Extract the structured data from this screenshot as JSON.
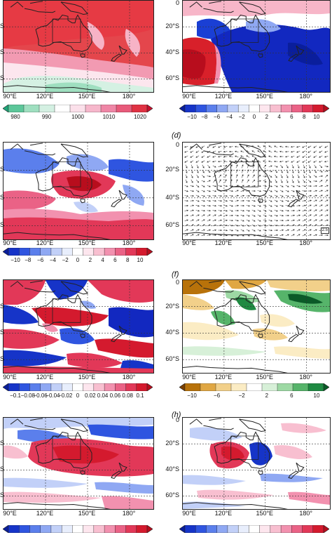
{
  "lon_labels": [
    "90°E",
    "120°E",
    "150°E",
    "180°"
  ],
  "lat_labels": [
    "0",
    "20°S",
    "40°S",
    "60°S"
  ],
  "lat_labels_cut_left": [
    "S",
    "S",
    "S"
  ],
  "panels": {
    "a": {
      "letter": "",
      "field": "sea-level-pressure",
      "colorbar": "slp"
    },
    "b": {
      "letter": "",
      "field": "slp-anomaly",
      "colorbar": "div10"
    },
    "c": {
      "letter": "",
      "field": "anomaly",
      "colorbar": "div10"
    },
    "d": {
      "letter": "(d)",
      "field": "wind-vectors",
      "ref_vector": "2.5"
    },
    "e": {
      "letter": "",
      "field": "small-anomaly",
      "colorbar": "div01"
    },
    "f": {
      "letter": "(f)",
      "field": "precipitation-anomaly",
      "colorbar": "precip"
    },
    "g": {
      "letter": "",
      "field": "anomaly"
    },
    "h": {
      "letter": "(h)",
      "field": "anomaly"
    }
  },
  "colorbars": {
    "slp": {
      "labels": [
        "980",
        "990",
        "1000",
        "1010",
        "1020"
      ],
      "colors": [
        "#1fa67a",
        "#5cc79a",
        "#9fdfc0",
        "#d4f0e2",
        "#ffffff",
        "#fbe0ea",
        "#f6b7cb",
        "#ef86a6",
        "#e85a7a",
        "#e03243",
        "#c8102e"
      ]
    },
    "div10": {
      "labels": [
        "−10",
        "−8",
        "−6",
        "−4",
        "−2",
        "0",
        "2",
        "4",
        "6",
        "8",
        "10"
      ],
      "colors": [
        "#0a1e9c",
        "#1634c8",
        "#2f55e0",
        "#5b7fec",
        "#8fa8f3",
        "#c2d0f8",
        "#e8eefc",
        "#ffffff",
        "#fde6ee",
        "#f8bfd0",
        "#f291af",
        "#ea6286",
        "#e23858",
        "#d41a2e",
        "#b80d1d"
      ]
    },
    "div01": {
      "labels": [
        "−0.1",
        "−0.08",
        "−0.06",
        "−0.04",
        "−0.02",
        "0",
        "0.02",
        "0.04",
        "0.06",
        "0.08",
        "0.1"
      ],
      "colors": [
        "#0a1e9c",
        "#1634c8",
        "#2f55e0",
        "#5b7fec",
        "#8fa8f3",
        "#c2d0f8",
        "#e8eefc",
        "#ffffff",
        "#fde6ee",
        "#f8bfd0",
        "#f291af",
        "#ea6286",
        "#e23858",
        "#d41a2e",
        "#b80d1d"
      ]
    },
    "precip": {
      "labels": [
        "−10",
        "−6",
        "−2",
        "2",
        "6",
        "10"
      ],
      "colors": [
        "#7a3f00",
        "#b8720a",
        "#e0a743",
        "#f2d08a",
        "#fbecc4",
        "#ffffff",
        "#d7f0d8",
        "#9dd9a4",
        "#56b46a",
        "#1f8a42",
        "#0b5a28"
      ]
    }
  }
}
